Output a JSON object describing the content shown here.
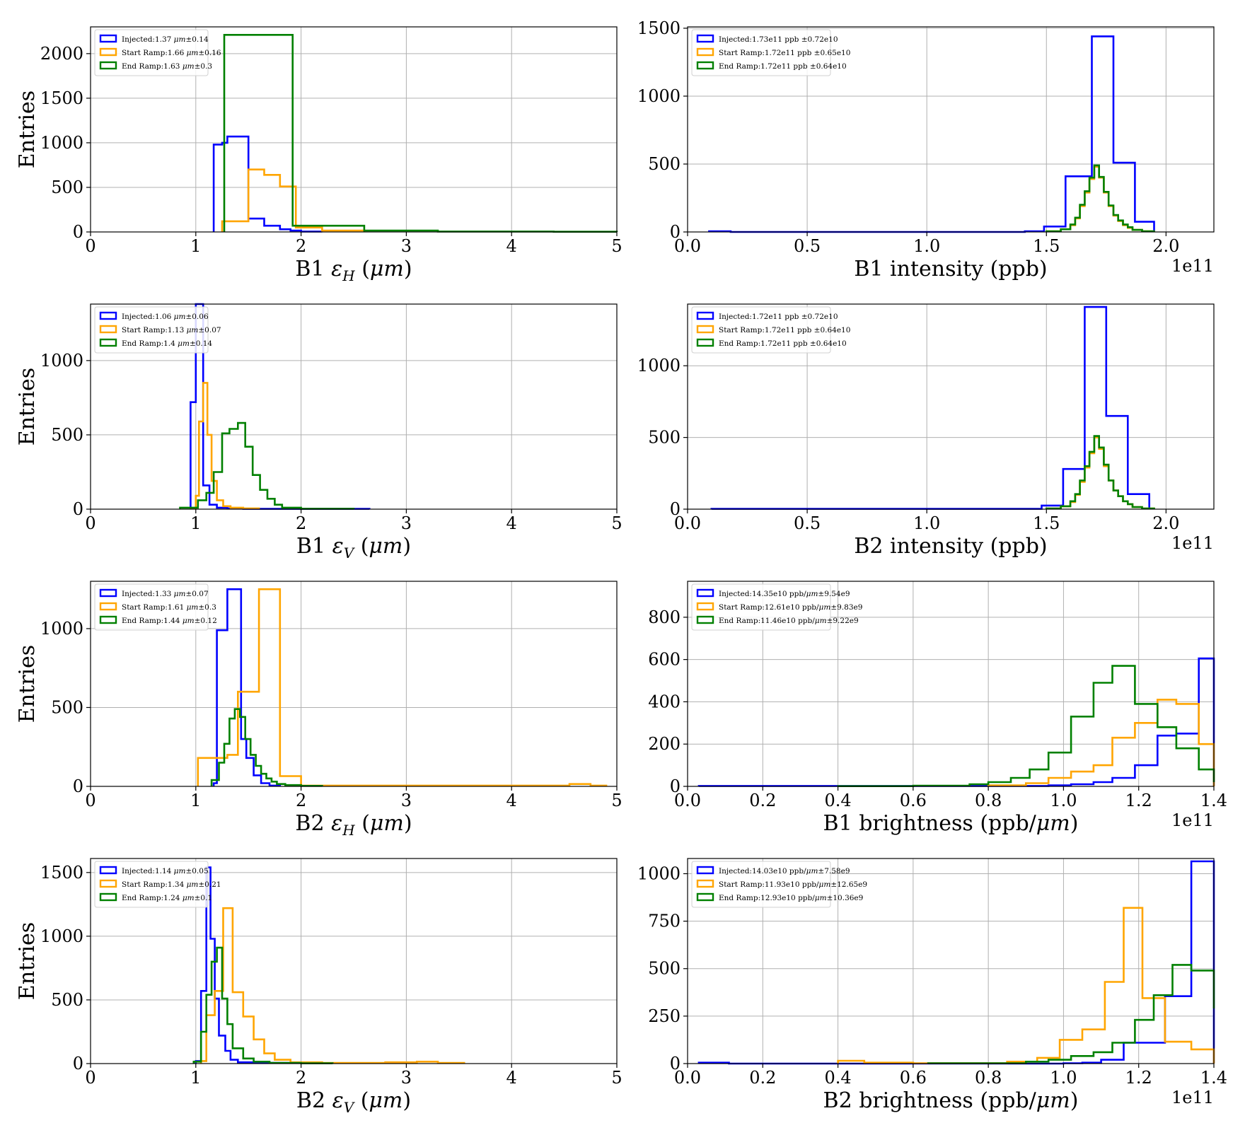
{
  "chart_data": [
    {
      "type": "histogram",
      "xlabel": "B1 εH (μm)",
      "ylabel": "Entries",
      "xlim": [
        0,
        5
      ],
      "ylim": [
        0,
        2300
      ],
      "xticks": [
        "0",
        "1",
        "2",
        "3",
        "4",
        "5"
      ],
      "xtick_values": [
        0,
        1,
        2,
        3,
        4,
        5
      ],
      "yticks": [
        "0",
        "500",
        "1000",
        "1500",
        "2000"
      ],
      "ytick_values": [
        0,
        500,
        1000,
        1500,
        2000
      ],
      "offset": "",
      "grid": true,
      "legend": "top-left",
      "series": [
        {
          "name": "Injected:1.37 μm±0.14",
          "color": "#0000ff",
          "edges": [
            1.17,
            1.25,
            1.3,
            1.5,
            1.65,
            1.8,
            1.9,
            2.0,
            2.2
          ],
          "counts": [
            980,
            1000,
            1070,
            150,
            70,
            30,
            15,
            5
          ]
        },
        {
          "name": "Start Ramp:1.66 μm±0.16",
          "color": "#ffa500",
          "edges": [
            1.25,
            1.5,
            1.65,
            1.8,
            1.95,
            2.2,
            2.6
          ],
          "counts": [
            120,
            700,
            640,
            510,
            50,
            15
          ]
        },
        {
          "name": "End Ramp:1.63 μm±0.3",
          "color": "#008000",
          "edges": [
            1.27,
            1.92,
            2.6,
            3.3,
            4.4,
            5.0
          ],
          "counts": [
            2210,
            70,
            15,
            5,
            2
          ]
        }
      ]
    },
    {
      "type": "histogram",
      "xlabel": "B1 intensity (ppb)",
      "ylabel": "",
      "xlim": [
        0,
        2.2
      ],
      "ylim": [
        0,
        1510
      ],
      "xticks": [
        "0.0",
        "0.5",
        "1.0",
        "1.5",
        "2.0"
      ],
      "xtick_values": [
        0,
        0.5,
        1.0,
        1.5,
        2.0
      ],
      "yticks": [
        "0",
        "500",
        "1000",
        "1500"
      ],
      "ytick_values": [
        0,
        500,
        1000,
        1500
      ],
      "offset": "1e11",
      "grid": true,
      "legend": "top-left",
      "series": [
        {
          "name": "Injected:1.73e11 ppb ±0.72e10",
          "color": "#0000ff",
          "edges": [
            0.09,
            0.18,
            1.41,
            1.49,
            1.58,
            1.69,
            1.78,
            1.87,
            1.95
          ],
          "counts": [
            5,
            0,
            5,
            40,
            410,
            1440,
            510,
            75
          ]
        },
        {
          "name": "Start Ramp:1.72e11 ppb ±0.65e10",
          "color": "#ffa500",
          "edges": [
            1.5,
            1.56,
            1.6,
            1.62,
            1.64,
            1.66,
            1.68,
            1.7,
            1.72,
            1.74,
            1.76,
            1.78,
            1.8,
            1.82,
            1.84,
            1.86,
            1.9,
            1.95
          ],
          "counts": [
            5,
            20,
            50,
            100,
            190,
            290,
            390,
            480,
            400,
            290,
            190,
            120,
            80,
            50,
            30,
            15,
            5
          ]
        },
        {
          "name": "End Ramp:1.72e11 ppb ±0.64e10",
          "color": "#008000",
          "edges": [
            1.5,
            1.56,
            1.6,
            1.62,
            1.64,
            1.66,
            1.68,
            1.7,
            1.72,
            1.74,
            1.76,
            1.78,
            1.8,
            1.82,
            1.84,
            1.86,
            1.9,
            1.95
          ],
          "counts": [
            5,
            20,
            55,
            105,
            200,
            300,
            400,
            490,
            405,
            295,
            195,
            125,
            85,
            55,
            35,
            15,
            5
          ]
        }
      ]
    },
    {
      "type": "histogram",
      "xlabel": "B1 εV (μm)",
      "ylabel": "Entries",
      "xlim": [
        0,
        5
      ],
      "ylim": [
        0,
        1380
      ],
      "xticks": [
        "0",
        "1",
        "2",
        "3",
        "4",
        "5"
      ],
      "xtick_values": [
        0,
        1,
        2,
        3,
        4,
        5
      ],
      "yticks": [
        "0",
        "500",
        "1000"
      ],
      "ytick_values": [
        0,
        500,
        1000
      ],
      "offset": "",
      "grid": true,
      "legend": "top-left",
      "series": [
        {
          "name": "Injected:1.06 μm±0.06",
          "color": "#0000ff",
          "edges": [
            0.95,
            1.0,
            1.07,
            1.13,
            1.2,
            1.3,
            1.45,
            2.65
          ],
          "counts": [
            720,
            1380,
            160,
            30,
            10,
            5,
            2
          ]
        },
        {
          "name": "Start Ramp:1.13 μm±0.07",
          "color": "#ffa500",
          "edges": [
            0.95,
            1.0,
            1.03,
            1.07,
            1.11,
            1.15,
            1.2,
            1.26,
            1.33,
            1.45,
            1.6
          ],
          "counts": [
            5,
            90,
            590,
            850,
            500,
            190,
            60,
            20,
            10,
            5
          ]
        },
        {
          "name": "End Ramp:1.4 μm±0.14",
          "color": "#008000",
          "edges": [
            0.85,
            1.02,
            1.1,
            1.17,
            1.25,
            1.32,
            1.4,
            1.47,
            1.54,
            1.61,
            1.68,
            1.75,
            1.82,
            2.0,
            2.5
          ],
          "counts": [
            10,
            60,
            110,
            250,
            510,
            540,
            580,
            420,
            230,
            130,
            70,
            30,
            10,
            3
          ]
        }
      ]
    },
    {
      "type": "histogram",
      "xlabel": "B2 intensity (ppb)",
      "ylabel": "",
      "xlim": [
        0,
        2.2
      ],
      "ylim": [
        0,
        1430
      ],
      "xticks": [
        "0.0",
        "0.5",
        "1.0",
        "1.5",
        "2.0"
      ],
      "xtick_values": [
        0,
        0.5,
        1.0,
        1.5,
        2.0
      ],
      "yticks": [
        "0",
        "500",
        "1000"
      ],
      "ytick_values": [
        0,
        500,
        1000
      ],
      "offset": "1e11",
      "grid": true,
      "legend": "top-left",
      "series": [
        {
          "name": "Injected:1.72e11 ppb ±0.72e10",
          "color": "#0000ff",
          "edges": [
            0.1,
            1.48,
            1.57,
            1.66,
            1.75,
            1.84,
            1.93
          ],
          "counts": [
            2,
            25,
            280,
            1410,
            650,
            105
          ]
        },
        {
          "name": "Start Ramp:1.72e11 ppb ±0.64e10",
          "color": "#ffa500",
          "edges": [
            1.5,
            1.56,
            1.6,
            1.62,
            1.64,
            1.66,
            1.68,
            1.7,
            1.72,
            1.74,
            1.76,
            1.78,
            1.8,
            1.82,
            1.84,
            1.86,
            1.9,
            1.95
          ],
          "counts": [
            5,
            20,
            50,
            100,
            190,
            290,
            390,
            500,
            420,
            300,
            200,
            130,
            90,
            55,
            35,
            15,
            5
          ]
        },
        {
          "name": "End Ramp:1.72e11 ppb ±0.64e10",
          "color": "#008000",
          "edges": [
            1.5,
            1.56,
            1.6,
            1.62,
            1.64,
            1.66,
            1.68,
            1.7,
            1.72,
            1.74,
            1.76,
            1.78,
            1.8,
            1.82,
            1.84,
            1.86,
            1.9,
            1.95
          ],
          "counts": [
            5,
            20,
            55,
            105,
            200,
            300,
            400,
            510,
            430,
            310,
            200,
            130,
            90,
            55,
            35,
            15,
            5
          ]
        }
      ]
    },
    {
      "type": "histogram",
      "xlabel": "B2 εH (μm)",
      "ylabel": "Entries",
      "xlim": [
        0,
        5
      ],
      "ylim": [
        0,
        1300
      ],
      "xticks": [
        "0",
        "1",
        "2",
        "3",
        "4",
        "5"
      ],
      "xtick_values": [
        0,
        1,
        2,
        3,
        4,
        5
      ],
      "yticks": [
        "0",
        "500",
        "1000"
      ],
      "ytick_values": [
        0,
        500,
        1000
      ],
      "offset": "",
      "grid": true,
      "legend": "top-left",
      "series": [
        {
          "name": "Injected:1.33 μm±0.07",
          "color": "#0000ff",
          "edges": [
            1.17,
            1.2,
            1.3,
            1.43,
            1.48,
            1.55,
            1.62,
            1.7,
            1.8
          ],
          "counts": [
            20,
            990,
            1250,
            300,
            180,
            70,
            20,
            5
          ]
        },
        {
          "name": "Start Ramp:1.61 μm±0.3",
          "color": "#ffa500",
          "edges": [
            1.02,
            1.3,
            1.4,
            1.6,
            1.8,
            2.0,
            4.55,
            4.75,
            4.9
          ],
          "counts": [
            180,
            200,
            600,
            1250,
            65,
            5,
            15,
            5
          ]
        },
        {
          "name": "End Ramp:1.44 μm±0.12",
          "color": "#008000",
          "edges": [
            1.15,
            1.22,
            1.27,
            1.32,
            1.37,
            1.42,
            1.47,
            1.52,
            1.57,
            1.62,
            1.67,
            1.72,
            1.77,
            1.85,
            2.0,
            2.2
          ],
          "counts": [
            40,
            150,
            270,
            430,
            490,
            440,
            300,
            200,
            130,
            80,
            50,
            30,
            15,
            8,
            3
          ]
        }
      ]
    },
    {
      "type": "histogram",
      "xlabel": "B1 brightness (ppb/μm)",
      "ylabel": "",
      "xlim": [
        0,
        1.4
      ],
      "ylim": [
        0,
        970
      ],
      "xticks": [
        "0.0",
        "0.2",
        "0.4",
        "0.6",
        "0.8",
        "1.0",
        "1.2",
        "1.4"
      ],
      "xtick_values": [
        0,
        0.2,
        0.4,
        0.6,
        0.8,
        1.0,
        1.2,
        1.4
      ],
      "yticks": [
        "0",
        "200",
        "400",
        "600",
        "800"
      ],
      "ytick_values": [
        0,
        200,
        400,
        600,
        800
      ],
      "offset": "1e11",
      "grid": true,
      "legend": "top-left",
      "series": [
        {
          "name": "Injected:14.35e10 ppb/μm±9.54e9",
          "color": "#0000ff",
          "edges": [
            0.03,
            0.96,
            1.02,
            1.08,
            1.13,
            1.19,
            1.25,
            1.3,
            1.36,
            1.4
          ],
          "counts": [
            2,
            5,
            10,
            20,
            40,
            100,
            240,
            250,
            605
          ]
        },
        {
          "name": "Start Ramp:12.61e10 ppb/μm±9.83e9",
          "color": "#ffa500",
          "edges": [
            0.8,
            0.9,
            0.96,
            1.02,
            1.08,
            1.13,
            1.19,
            1.25,
            1.3,
            1.36,
            1.4
          ],
          "counts": [
            5,
            15,
            40,
            70,
            100,
            230,
            300,
            410,
            390,
            200
          ]
        },
        {
          "name": "End Ramp:11.46e10 ppb/μm±9.22e9",
          "color": "#008000",
          "edges": [
            0.4,
            0.6,
            0.75,
            0.8,
            0.86,
            0.91,
            0.96,
            1.02,
            1.08,
            1.13,
            1.19,
            1.25,
            1.3,
            1.36,
            1.4
          ],
          "counts": [
            1,
            3,
            10,
            20,
            40,
            80,
            160,
            330,
            490,
            570,
            390,
            280,
            180,
            80,
            20
          ]
        }
      ]
    },
    {
      "type": "histogram",
      "xlabel": "B2 εV (μm)",
      "ylabel": "Entries",
      "xlim": [
        0,
        5
      ],
      "ylim": [
        0,
        1610
      ],
      "xticks": [
        "0",
        "1",
        "2",
        "3",
        "4",
        "5"
      ],
      "xtick_values": [
        0,
        1,
        2,
        3,
        4,
        5
      ],
      "yticks": [
        "0",
        "500",
        "1000",
        "1500"
      ],
      "ytick_values": [
        0,
        500,
        1000,
        1500
      ],
      "offset": "",
      "grid": true,
      "legend": "top-left",
      "series": [
        {
          "name": "Injected:1.14 μm±0.05",
          "color": "#0000ff",
          "edges": [
            1.0,
            1.05,
            1.1,
            1.14,
            1.18,
            1.22,
            1.28,
            1.33,
            1.4,
            1.6,
            2.0
          ],
          "counts": [
            20,
            570,
            1540,
            980,
            510,
            220,
            100,
            30,
            10,
            5
          ]
        },
        {
          "name": "Start Ramp:1.34 μm±0.21",
          "color": "#ffa500",
          "edges": [
            1.05,
            1.1,
            1.18,
            1.26,
            1.35,
            1.45,
            1.55,
            1.65,
            1.75,
            1.9,
            2.2,
            2.8,
            3.1,
            3.3,
            3.55
          ],
          "counts": [
            20,
            380,
            570,
            1220,
            560,
            370,
            190,
            80,
            30,
            10,
            5,
            10,
            15,
            5
          ]
        },
        {
          "name": "End Ramp:1.24 μm±0.1",
          "color": "#008000",
          "edges": [
            0.98,
            1.05,
            1.1,
            1.15,
            1.2,
            1.25,
            1.3,
            1.35,
            1.45,
            1.55,
            1.7,
            2.0,
            2.3
          ],
          "counts": [
            15,
            250,
            540,
            800,
            910,
            510,
            310,
            120,
            40,
            15,
            5,
            2
          ]
        }
      ]
    },
    {
      "type": "histogram",
      "xlabel": "B2 brightness (ppb/μm)",
      "ylabel": "",
      "xlim": [
        0,
        1.4
      ],
      "ylim": [
        0,
        1080
      ],
      "xticks": [
        "0.0",
        "0.2",
        "0.4",
        "0.6",
        "0.8",
        "1.0",
        "1.2",
        "1.4"
      ],
      "xtick_values": [
        0,
        0.2,
        0.4,
        0.6,
        0.8,
        1.0,
        1.2,
        1.4
      ],
      "yticks": [
        "0",
        "250",
        "500",
        "750",
        "1000"
      ],
      "ytick_values": [
        0,
        250,
        500,
        750,
        1000
      ],
      "offset": "1e11",
      "grid": true,
      "legend": "top-left",
      "series": [
        {
          "name": "Injected:14.03e10 ppb/μm±7.58e9",
          "color": "#0000ff",
          "edges": [
            0.03,
            0.11,
            1.0,
            1.05,
            1.1,
            1.16,
            1.21,
            1.27,
            1.34,
            1.4
          ],
          "counts": [
            5,
            0,
            2,
            5,
            20,
            110,
            110,
            355,
            1065
          ]
        },
        {
          "name": "Start Ramp:11.93e10 ppb/μm±12.65e9",
          "color": "#ffa500",
          "edges": [
            0.4,
            0.47,
            0.6,
            0.85,
            0.93,
            0.99,
            1.05,
            1.11,
            1.16,
            1.21,
            1.27,
            1.34,
            1.4
          ],
          "counts": [
            15,
            5,
            2,
            10,
            30,
            125,
            180,
            430,
            820,
            345,
            115,
            75
          ]
        },
        {
          "name": "End Ramp:12.93e10 ppb/μm±10.36e9",
          "color": "#008000",
          "edges": [
            0.64,
            0.9,
            0.96,
            1.02,
            1.08,
            1.13,
            1.19,
            1.24,
            1.29,
            1.34,
            1.4
          ],
          "counts": [
            2,
            10,
            20,
            40,
            60,
            110,
            230,
            360,
            520,
            490,
            290
          ]
        }
      ]
    }
  ]
}
